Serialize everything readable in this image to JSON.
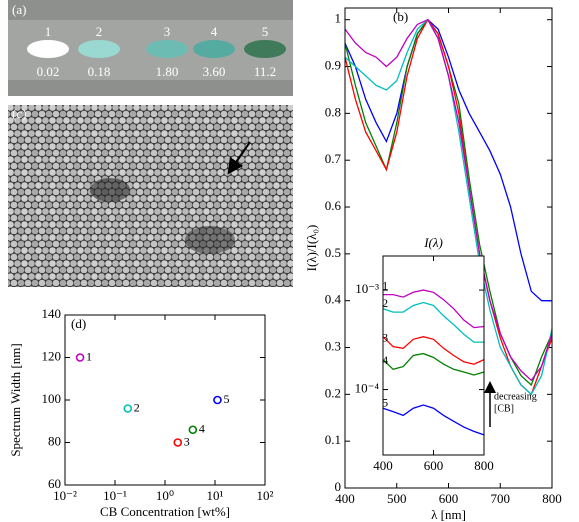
{
  "photo_a": {
    "label": "(a)",
    "samples": [
      {
        "number": "1",
        "concentration": "0.02"
      },
      {
        "number": "2",
        "concentration": "0.18"
      },
      {
        "number": "3",
        "concentration": "1.80"
      },
      {
        "number": "4",
        "concentration": "3.60"
      },
      {
        "number": "5",
        "concentration": "11.2"
      }
    ]
  },
  "photo_c": {
    "label": "(c)"
  },
  "chart_data": [
    {
      "type": "line",
      "label": "(b)",
      "xlabel": "λ [nm]",
      "ylabel": "I(λ)/I(λ₀)",
      "x": [
        400,
        420,
        440,
        460,
        480,
        500,
        520,
        540,
        560,
        580,
        600,
        620,
        640,
        660,
        680,
        700,
        720,
        740,
        760,
        780,
        800
      ],
      "xlim": [
        400,
        800
      ],
      "xticks": [
        400,
        500,
        600,
        700,
        800
      ],
      "ylim": [
        0,
        1.025
      ],
      "yticks": [
        0,
        0.1,
        0.2,
        0.3,
        0.4,
        0.5,
        0.6,
        0.7,
        0.8,
        0.9,
        1
      ],
      "series": [
        {
          "color": "#0000ff",
          "values": [
            0.95,
            0.9,
            0.83,
            0.78,
            0.74,
            0.8,
            0.9,
            0.97,
            1.0,
            0.98,
            0.92,
            0.85,
            0.8,
            0.76,
            0.72,
            0.67,
            0.6,
            0.5,
            0.42,
            0.4,
            0.4
          ]
        },
        {
          "color": "#008000",
          "values": [
            0.95,
            0.86,
            0.78,
            0.73,
            0.68,
            0.78,
            0.9,
            0.97,
            1.0,
            0.97,
            0.9,
            0.82,
            0.66,
            0.52,
            0.42,
            0.33,
            0.28,
            0.24,
            0.22,
            0.28,
            0.33
          ]
        },
        {
          "color": "#ff0000",
          "values": [
            0.92,
            0.83,
            0.76,
            0.72,
            0.68,
            0.76,
            0.88,
            0.96,
            1.0,
            0.97,
            0.9,
            0.8,
            0.64,
            0.5,
            0.4,
            0.32,
            0.26,
            0.22,
            0.2,
            0.26,
            0.32
          ]
        },
        {
          "color": "#00bfbf",
          "values": [
            0.92,
            0.9,
            0.88,
            0.86,
            0.85,
            0.87,
            0.93,
            0.98,
            1.0,
            0.96,
            0.88,
            0.76,
            0.62,
            0.48,
            0.38,
            0.3,
            0.26,
            0.22,
            0.2,
            0.24,
            0.34
          ]
        },
        {
          "color": "#bf00bf",
          "values": [
            0.98,
            0.95,
            0.93,
            0.92,
            0.9,
            0.92,
            0.96,
            0.99,
            1.0,
            0.96,
            0.88,
            0.78,
            0.64,
            0.5,
            0.4,
            0.33,
            0.28,
            0.25,
            0.23,
            0.26,
            0.33
          ]
        }
      ]
    },
    {
      "type": "line",
      "title": "I(λ)",
      "annotation": [
        "decreasing",
        "[CB]"
      ],
      "x": [
        400,
        440,
        480,
        520,
        560,
        600,
        640,
        680,
        720,
        760,
        800
      ],
      "xlim": [
        400,
        800
      ],
      "xticks": [
        400,
        600,
        800
      ],
      "ylim": [
        2.2e-05,
        0.0022
      ],
      "log_y": true,
      "yticks": [
        {
          "value": 0.001,
          "label": "10⁻³"
        },
        {
          "value": 0.0001,
          "label": "10⁻⁴"
        }
      ],
      "series": [
        {
          "name": "1",
          "color": "#bf00bf",
          "values": [
            0.0009,
            0.0009,
            0.00085,
            0.00095,
            0.001,
            0.00095,
            0.0008,
            0.00065,
            0.0005,
            0.00042,
            0.00043
          ]
        },
        {
          "name": "2",
          "color": "#00bfbf",
          "values": [
            0.00065,
            0.0006,
            0.0006,
            0.0007,
            0.00075,
            0.0007,
            0.00055,
            0.00045,
            0.00036,
            0.0003,
            0.0003
          ]
        },
        {
          "name": "3",
          "color": "#ff0000",
          "values": [
            0.00034,
            0.00027,
            0.00026,
            0.00032,
            0.00034,
            0.00032,
            0.00026,
            0.00022,
            0.00019,
            0.00018,
            0.0002
          ]
        },
        {
          "name": "4",
          "color": "#008000",
          "values": [
            0.0002,
            0.00016,
            0.00017,
            0.00022,
            0.00023,
            0.00021,
            0.00018,
            0.00016,
            0.00015,
            0.00014,
            0.00015
          ]
        },
        {
          "name": "5",
          "color": "#0000ff",
          "values": [
            6.5e-05,
            6e-05,
            5.5e-05,
            6.5e-05,
            7e-05,
            6.5e-05,
            5.5e-05,
            4.8e-05,
            4.2e-05,
            3.8e-05,
            3.5e-05
          ]
        }
      ]
    },
    {
      "type": "scatter",
      "label": "(d)",
      "xlabel": "CB Concentration [wt%]",
      "ylabel": "Spectrum Width [nm]",
      "xlim": [
        0.01,
        100
      ],
      "log_x": true,
      "xticks": [
        {
          "value": 0.01,
          "label": "10⁻²"
        },
        {
          "value": 0.1,
          "label": "10⁻¹"
        },
        {
          "value": 1,
          "label": "10⁰"
        },
        {
          "value": 10,
          "label": "10¹"
        },
        {
          "value": 100,
          "label": "10²"
        }
      ],
      "ylim": [
        60,
        140
      ],
      "yticks": [
        60,
        80,
        100,
        120,
        140
      ],
      "series": [
        {
          "name": "1",
          "color": "#bf00bf",
          "x": [
            0.02
          ],
          "values": [
            120
          ]
        },
        {
          "name": "2",
          "color": "#00bfbf",
          "x": [
            0.18
          ],
          "values": [
            96
          ]
        },
        {
          "name": "3",
          "color": "#ff0000",
          "x": [
            1.8
          ],
          "values": [
            80
          ]
        },
        {
          "name": "4",
          "color": "#008000",
          "x": [
            3.6
          ],
          "values": [
            86
          ]
        },
        {
          "name": "5",
          "color": "#0000ff",
          "x": [
            11.2
          ],
          "values": [
            100
          ]
        }
      ]
    }
  ]
}
